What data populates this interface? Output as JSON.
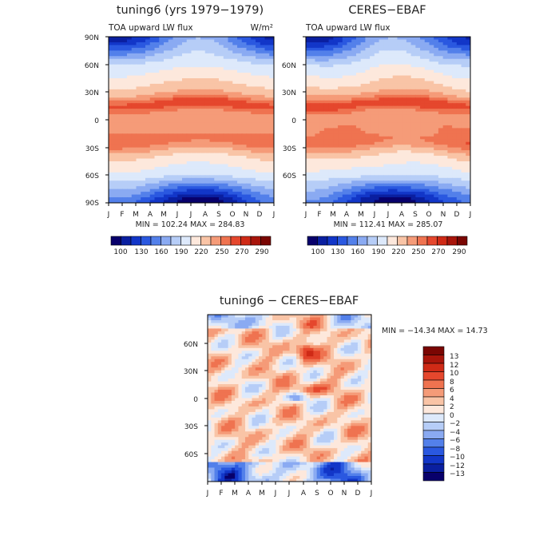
{
  "chart_data": [
    {
      "type": "heatmap",
      "title": "tuning6 (yrs 1979−1979)",
      "subtitle": "TOA upward LW flux",
      "units": "W/m²",
      "x_ticks": [
        "J",
        "F",
        "M",
        "A",
        "M",
        "J",
        "J",
        "A",
        "S",
        "O",
        "N",
        "D",
        "J"
      ],
      "y_ticks": [
        "90N",
        "60N",
        "30N",
        "0",
        "30S",
        "60S",
        "90S"
      ],
      "stats": "MIN = 102.24  MAX = 284.83",
      "colorbar_labels": [
        "100",
        "130",
        "160",
        "190",
        "220",
        "250",
        "270",
        "290"
      ]
    },
    {
      "type": "heatmap",
      "title": "CERES−EBAF",
      "subtitle": "TOA upward LW flux",
      "x_ticks": [
        "J",
        "F",
        "M",
        "A",
        "M",
        "J",
        "J",
        "A",
        "S",
        "O",
        "N",
        "D",
        "J"
      ],
      "y_ticks": [
        "90N",
        "60N",
        "30N",
        "0",
        "30S",
        "60S",
        "90S"
      ],
      "stats": "MIN = 112.41  MAX = 285.07",
      "colorbar_labels": [
        "100",
        "130",
        "160",
        "190",
        "220",
        "250",
        "270",
        "290"
      ]
    },
    {
      "type": "heatmap",
      "title": "tuning6 − CERES−EBAF",
      "x_ticks": [
        "J",
        "F",
        "M",
        "A",
        "M",
        "J",
        "J",
        "A",
        "S",
        "O",
        "N",
        "D",
        "J"
      ],
      "y_ticks": [
        "60N",
        "30N",
        "0",
        "30S",
        "60S"
      ],
      "stats": "MIN = −14.34  MAX =  14.73",
      "colorbar_labels": [
        "13",
        "12",
        "10",
        "8",
        "6",
        "4",
        "2",
        "0",
        "−2",
        "−4",
        "−6",
        "−8",
        "−10",
        "−12",
        "−13"
      ]
    }
  ],
  "palette_main": [
    "#08006b",
    "#0a1fa0",
    "#1236c8",
    "#2a58e0",
    "#5380ea",
    "#8aaaf2",
    "#b6cdf7",
    "#dde9fb",
    "#fde8dc",
    "#f9c4a6",
    "#f59b78",
    "#ef7350",
    "#e5472d",
    "#cf2a16",
    "#a8150b",
    "#7a0603"
  ],
  "palette_diff": [
    "#7a0603",
    "#a8150b",
    "#cf2a16",
    "#e5472d",
    "#ef7350",
    "#f59b78",
    "#f9c4a6",
    "#fde8dc",
    "#dde9fb",
    "#b6cdf7",
    "#8aaaf2",
    "#5380ea",
    "#2a58e0",
    "#1236c8",
    "#0a1fa0",
    "#08006b"
  ]
}
